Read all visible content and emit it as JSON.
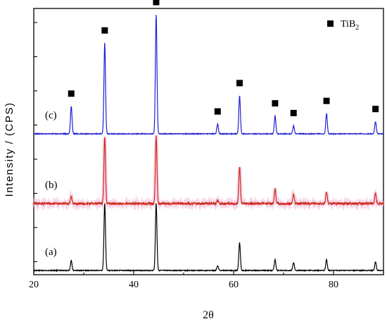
{
  "chart_data": {
    "type": "line",
    "xlabel": "2θ",
    "ylabel": "Intensity / (CPS)",
    "xlim": [
      20,
      90
    ],
    "xticks": [
      "20",
      "40",
      "60",
      "80"
    ],
    "y_tick_labels_shown": false,
    "grid": false,
    "legend": {
      "position": "top-right",
      "marker": "filled-square",
      "text_main": "TiB",
      "text_sub": "2"
    },
    "peak_marker": "filled-square",
    "series": [
      {
        "name": "(a)",
        "color": "#000000",
        "baseline": 0,
        "peaks": [
          {
            "x": 27.5,
            "y": 0.15
          },
          {
            "x": 34.2,
            "y": 1.0
          },
          {
            "x": 44.5,
            "y": 1.0
          },
          {
            "x": 56.8,
            "y": 0.07
          },
          {
            "x": 61.2,
            "y": 0.42
          },
          {
            "x": 68.3,
            "y": 0.16
          },
          {
            "x": 72.0,
            "y": 0.12
          },
          {
            "x": 78.6,
            "y": 0.16
          },
          {
            "x": 88.4,
            "y": 0.13
          }
        ]
      },
      {
        "name": "(b)",
        "color": "#cc2a1a",
        "baseline": 1,
        "peaks": [
          {
            "x": 27.5,
            "y": 0.1
          },
          {
            "x": 34.2,
            "y": 1.0
          },
          {
            "x": 44.5,
            "y": 1.0
          },
          {
            "x": 56.8,
            "y": 0.05
          },
          {
            "x": 61.2,
            "y": 0.55
          },
          {
            "x": 68.3,
            "y": 0.22
          },
          {
            "x": 72.0,
            "y": 0.14
          },
          {
            "x": 78.6,
            "y": 0.17
          },
          {
            "x": 88.4,
            "y": 0.15
          }
        ]
      },
      {
        "name": "(c)",
        "color": "#1f1fd6",
        "baseline": 2,
        "peaks": [
          {
            "x": 27.5,
            "y": 0.34
          },
          {
            "x": 34.2,
            "y": 1.12
          },
          {
            "x": 44.5,
            "y": 1.47
          },
          {
            "x": 56.8,
            "y": 0.12
          },
          {
            "x": 61.2,
            "y": 0.47
          },
          {
            "x": 68.3,
            "y": 0.22
          },
          {
            "x": 72.0,
            "y": 0.1
          },
          {
            "x": 78.6,
            "y": 0.25
          },
          {
            "x": 88.4,
            "y": 0.15
          }
        ]
      }
    ],
    "marked_peaks_x": [
      27.5,
      34.2,
      44.5,
      56.8,
      61.2,
      68.3,
      72.0,
      78.6,
      88.4
    ]
  }
}
